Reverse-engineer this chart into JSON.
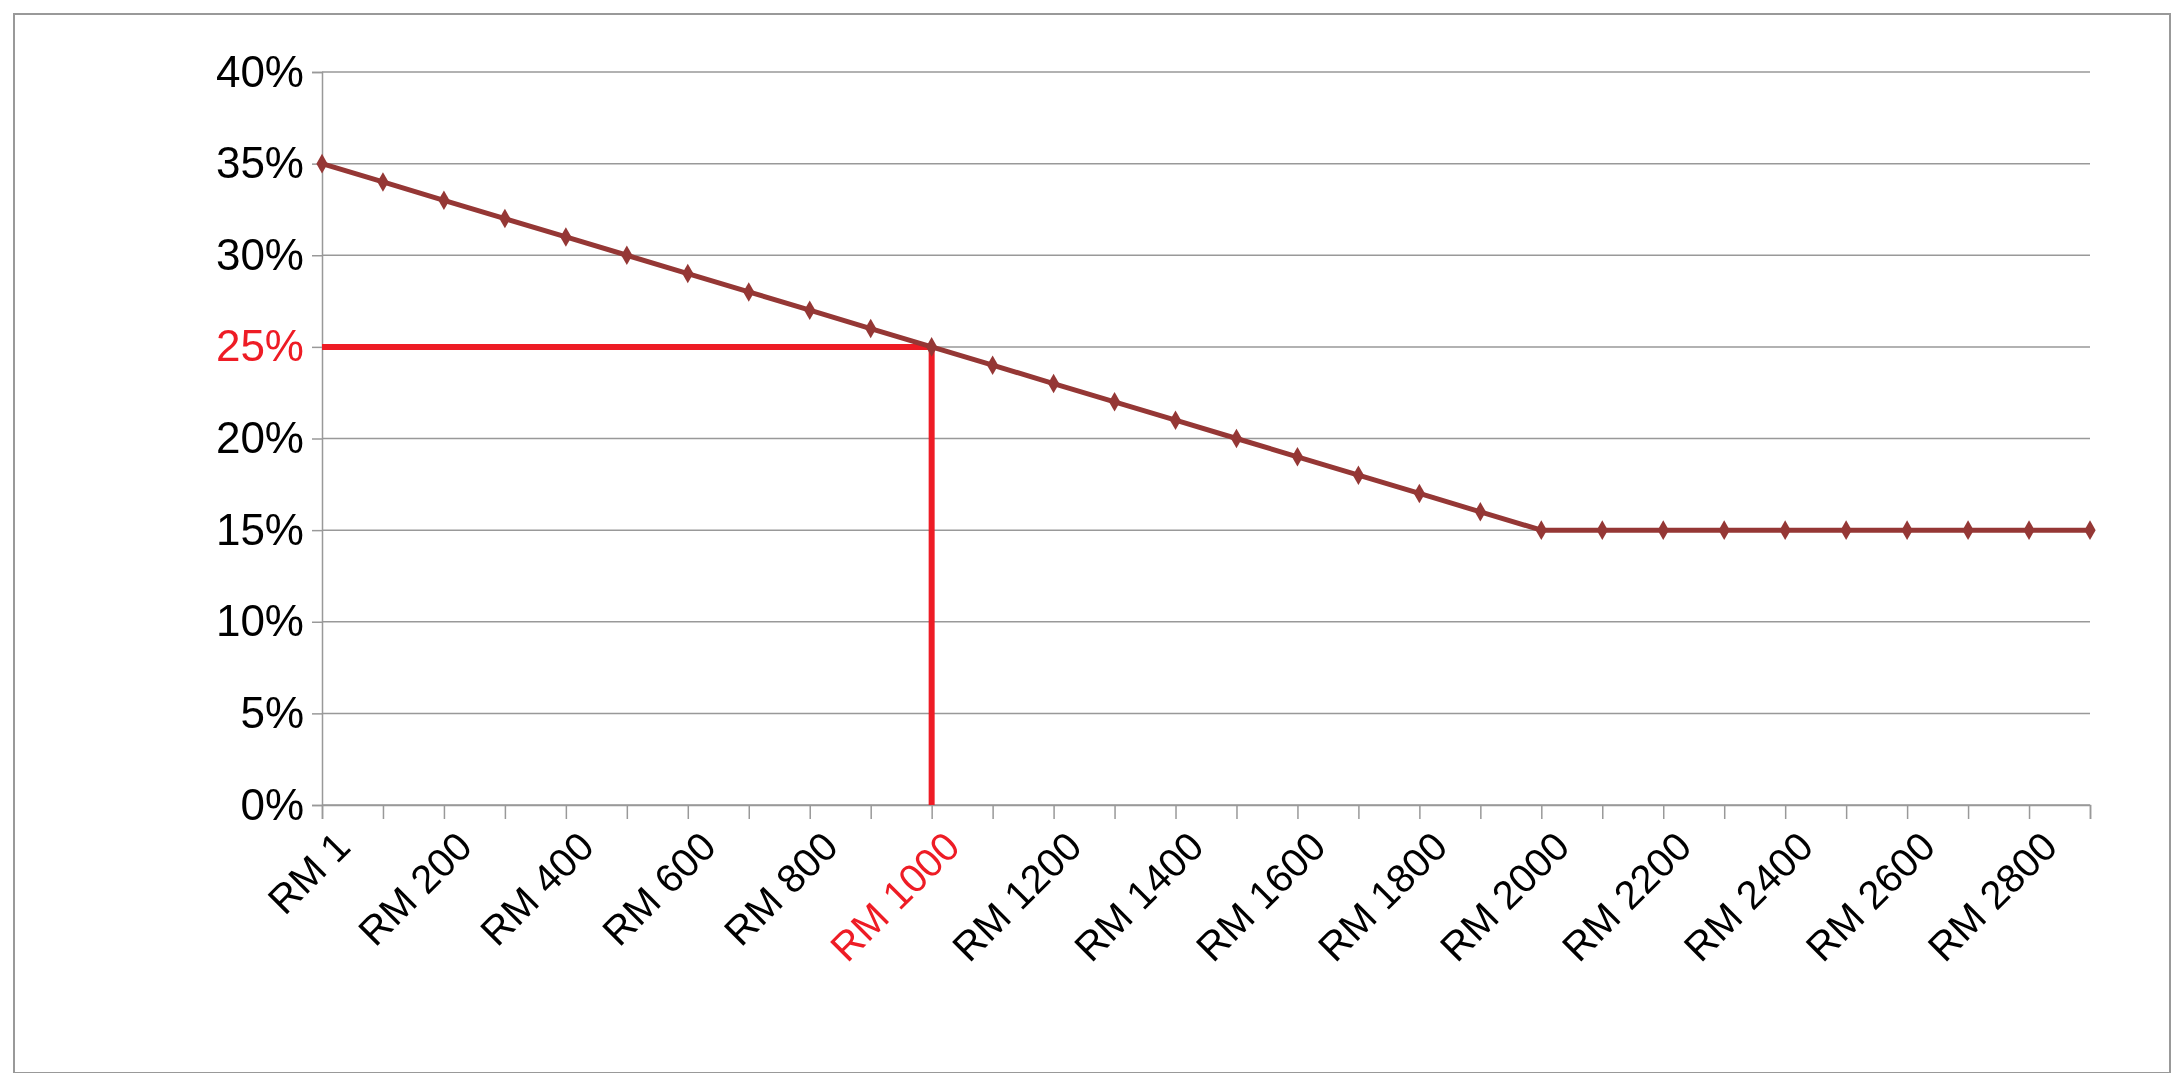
{
  "chart_data": {
    "type": "line",
    "categories": [
      "RM 1",
      null,
      "RM 200",
      null,
      "RM 400",
      null,
      "RM 600",
      null,
      "RM 800",
      null,
      "RM 1000",
      null,
      "RM 1200",
      null,
      "RM 1400",
      null,
      "RM 1600",
      null,
      "RM 1800",
      null,
      "RM 2000",
      null,
      "RM 2200",
      null,
      "RM 2400",
      null,
      "RM 2600",
      null,
      "RM 2800",
      null
    ],
    "series": [
      {
        "color": "#953735",
        "values": [
          35,
          34,
          33,
          32,
          31,
          30,
          29,
          28,
          27,
          26,
          25,
          24,
          23,
          22,
          21,
          20,
          19,
          18,
          17,
          16,
          15,
          15,
          15,
          15,
          15,
          15,
          15,
          15,
          15,
          15
        ]
      }
    ],
    "ylim": [
      0,
      40
    ],
    "yticks": [
      {
        "value": 0,
        "label": "0%"
      },
      {
        "value": 5,
        "label": "5%"
      },
      {
        "value": 10,
        "label": "10%"
      },
      {
        "value": 15,
        "label": "15%"
      },
      {
        "value": 20,
        "label": "20%"
      },
      {
        "value": 25,
        "label": "25%"
      },
      {
        "value": 30,
        "label": "30%"
      },
      {
        "value": 35,
        "label": "35%"
      },
      {
        "value": 40,
        "label": "40%"
      }
    ],
    "grid": "y",
    "marker": "diamond",
    "line_style": "solid",
    "ref_lines": [
      {
        "axis": "y",
        "value": 25,
        "color": "#ee1c25"
      },
      {
        "axis": "x",
        "value": "RM 1000",
        "color": "#ee1c25"
      }
    ]
  }
}
